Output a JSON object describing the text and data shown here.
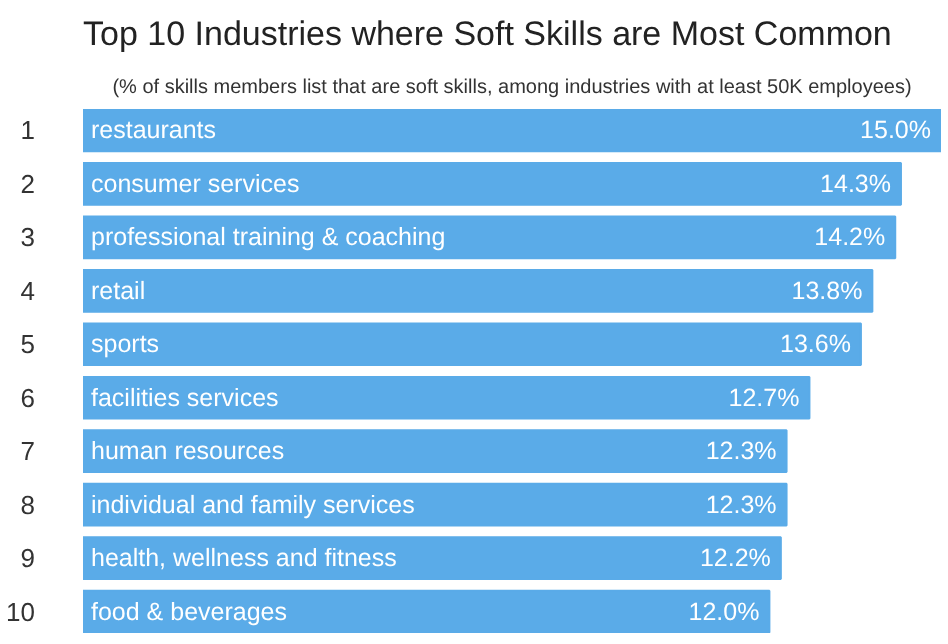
{
  "chart_data": {
    "type": "bar",
    "orientation": "horizontal",
    "title": "Top 10 Industries where Soft Skills are Most Common",
    "subtitle": "(% of skills members list that are soft skills, among industries with at least 50K employees)",
    "categories": [
      "restaurants",
      "consumer services",
      "professional training & coaching",
      "retail",
      "sports",
      "facilities services",
      "human resources",
      "individual and family services",
      "health, wellness and fitness",
      "food & beverages"
    ],
    "values": [
      15.0,
      14.3,
      14.2,
      13.8,
      13.6,
      12.7,
      12.3,
      12.3,
      12.2,
      12.0
    ],
    "value_labels": [
      "15.0%",
      "14.3%",
      "14.2%",
      "13.8%",
      "13.6%",
      "12.7%",
      "12.3%",
      "12.3%",
      "12.2%",
      "12.0%"
    ],
    "annotations": [
      "1",
      "2",
      "3",
      "4",
      "5",
      "6",
      "7",
      "8",
      "9",
      "10"
    ],
    "color": "#5aabe8",
    "grid": false
  }
}
